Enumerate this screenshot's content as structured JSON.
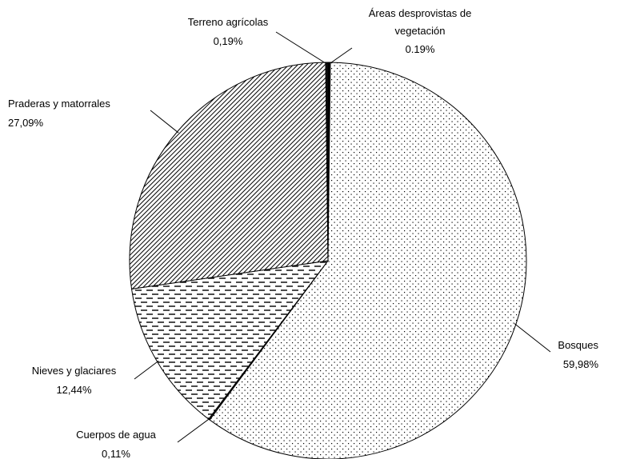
{
  "chart_data": {
    "type": "pie",
    "categories": [
      "Áreas desprovistas de vegetación",
      "Bosques",
      "Cuerpos de agua",
      "Nieves y glaciares",
      "Praderas y matorrales",
      "Terreno agrícolas"
    ],
    "values": [
      0.19,
      59.98,
      0.11,
      12.44,
      27.09,
      0.19
    ],
    "value_labels": [
      "0,19%",
      "59,98%",
      "0,11%",
      "12,44%",
      "27,09%",
      "0,19%"
    ]
  }
}
